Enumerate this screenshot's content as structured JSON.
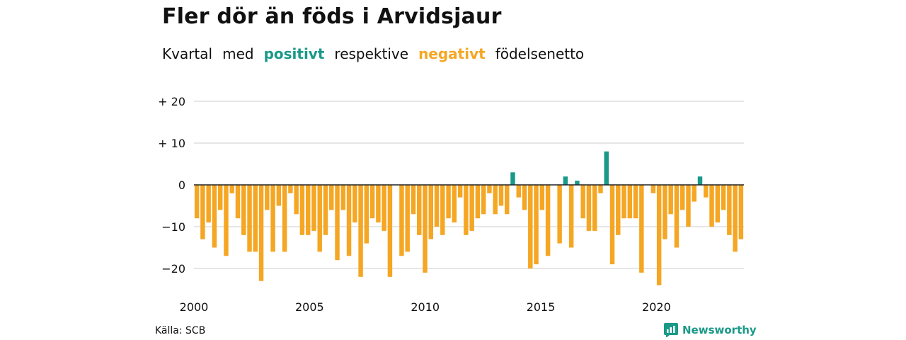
{
  "title": "Fler dör än föds i Arvidsjaur",
  "subtitle": {
    "part1": "Kvartal",
    "part2": "med",
    "positive_word": "positivt",
    "part3": "respektive",
    "negative_word": "negativt",
    "part4": "födelsenetto"
  },
  "source": "Källa: SCB",
  "brand": "Newsworthy",
  "colors": {
    "positive": "#1a9988",
    "negative": "#f5a623",
    "grid": "#dddddd",
    "axis": "#222222"
  },
  "chart_data": {
    "type": "bar",
    "ylim": [
      -25,
      20
    ],
    "yticks": [
      20,
      10,
      0,
      -10,
      -20
    ],
    "ytick_labels": [
      "+ 20",
      "+ 10",
      "0",
      "−10",
      "−20"
    ],
    "xlim": [
      2000,
      2023.75
    ],
    "xticks": [
      2000,
      2005,
      2010,
      2015,
      2020
    ],
    "xtick_labels": [
      "2000",
      "2005",
      "2010",
      "2015",
      "2020"
    ],
    "values": [
      -8,
      -13,
      -9,
      -15,
      -6,
      -17,
      -2,
      -8,
      -12,
      -16,
      -16,
      -23,
      -6,
      -16,
      -5,
      -16,
      -2,
      -7,
      -12,
      -12,
      -11,
      -16,
      -12,
      -6,
      -18,
      -6,
      -17,
      -9,
      -22,
      -14,
      -8,
      -9,
      -11,
      -22,
      0,
      -17,
      -16,
      -7,
      -12,
      -21,
      -13,
      -10,
      -12,
      -8,
      -9,
      -3,
      -12,
      -11,
      -8,
      -7,
      -2,
      -7,
      -5,
      -7,
      3,
      -3,
      -6,
      -20,
      -19,
      -6,
      -17,
      0,
      -14,
      2,
      -15,
      1,
      -8,
      -11,
      -11,
      -2,
      8,
      -19,
      -12,
      -8,
      -8,
      -8,
      -21,
      0,
      -2,
      -24,
      -13,
      -7,
      -15,
      -6,
      -10,
      -4,
      2,
      -3,
      -10,
      -9,
      -6,
      -12,
      -16,
      -13
    ]
  }
}
